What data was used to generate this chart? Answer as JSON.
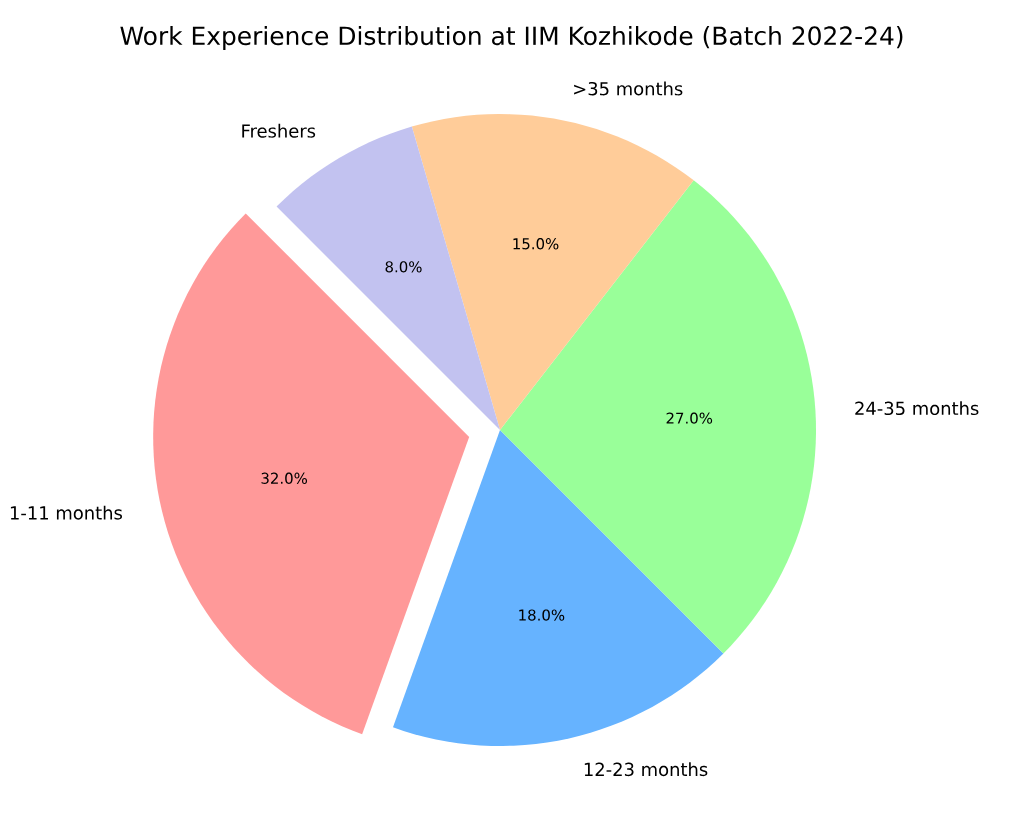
{
  "chart_data": {
    "type": "pie",
    "title": "Work Experience Distribution at IIM Kozhikode (Batch 2022-24)",
    "categories": [
      "1-11 months",
      "12-23 months",
      "24-35 months",
      ">35 months",
      "Freshers"
    ],
    "values": [
      32.0,
      18.0,
      27.0,
      15.0,
      8.0
    ],
    "colors": [
      "#ff9999",
      "#66b3ff",
      "#99ff99",
      "#ffcc99",
      "#c2c2f0"
    ],
    "value_labels": [
      "32.0%",
      "18.0%",
      "27.0%",
      "15.0%",
      "8.0%"
    ]
  }
}
